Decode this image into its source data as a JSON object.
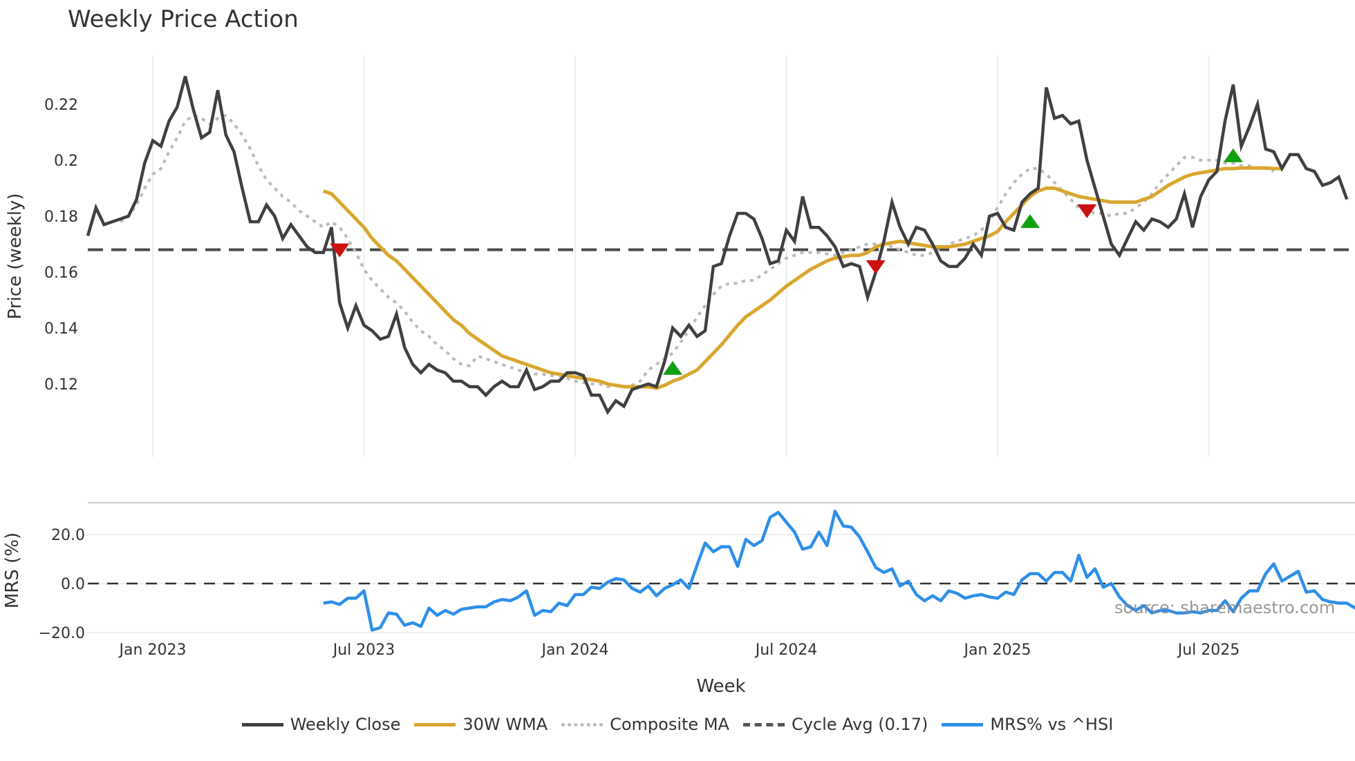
{
  "header": {
    "title": "Weekly Price Action"
  },
  "watermark": "source: sharemaestro.com",
  "legend": [
    {
      "label": "Weekly Close",
      "color": "#404040",
      "style": "solid"
    },
    {
      "label": "30W WMA",
      "color": "#D9A62E",
      "style": "solid"
    },
    {
      "label": "Composite MA",
      "color": "#BBBBBB",
      "style": "dotted"
    },
    {
      "label": "Cycle Avg (0.17)",
      "color": "#555555",
      "style": "dashed"
    },
    {
      "label": "MRS% vs ^HSI",
      "color": "#2E8FE8",
      "style": "solid"
    }
  ],
  "chart_data": [
    {
      "type": "line",
      "title": "Weekly Price Action",
      "xlabel": "Week",
      "ylabel": "Price (weekly)",
      "x_ticks": [
        "Jan 2023",
        "Jul 2023",
        "Jan 2024",
        "Jul 2024",
        "Jan 2025",
        "Jul 2025"
      ],
      "x_tick_week_index": [
        8,
        34,
        60,
        86,
        112,
        138
      ],
      "y_ticks": [
        0.12,
        0.14,
        0.16,
        0.18,
        0.2,
        0.22
      ],
      "y_tick_labels": [
        "0.12",
        "0.14",
        "0.16",
        "0.18",
        "0.2",
        "0.22"
      ],
      "ylim": [
        0.103,
        0.2325
      ],
      "grid": "vertical",
      "cycle_avg": 0.168,
      "series": [
        {
          "name": "Weekly Close",
          "start_index": 0,
          "values": [
            0.173,
            0.183,
            0.177,
            0.178,
            0.179,
            0.18,
            0.186,
            0.199,
            0.207,
            0.205,
            0.214,
            0.219,
            0.23,
            0.218,
            0.208,
            0.21,
            0.225,
            0.209,
            0.203,
            0.19,
            0.178,
            0.178,
            0.184,
            0.18,
            0.172,
            0.177,
            0.173,
            0.169,
            0.167,
            0.167,
            0.176,
            0.149,
            0.14,
            0.148,
            0.141,
            0.139,
            0.136,
            0.137,
            0.145,
            0.133,
            0.127,
            0.124,
            0.127,
            0.125,
            0.124,
            0.121,
            0.121,
            0.119,
            0.119,
            0.116,
            0.119,
            0.121,
            0.119,
            0.119,
            0.125,
            0.118,
            0.119,
            0.121,
            0.121,
            0.124,
            0.124,
            0.123,
            0.116,
            0.116,
            0.11,
            0.114,
            0.112,
            0.118,
            0.119,
            0.12,
            0.119,
            0.128,
            0.14,
            0.137,
            0.141,
            0.137,
            0.139,
            0.162,
            0.163,
            0.173,
            0.181,
            0.181,
            0.179,
            0.172,
            0.163,
            0.164,
            0.175,
            0.171,
            0.187,
            0.176,
            0.176,
            0.173,
            0.169,
            0.162,
            0.163,
            0.162,
            0.151,
            0.16,
            0.171,
            0.185,
            0.176,
            0.17,
            0.176,
            0.175,
            0.17,
            0.164,
            0.162,
            0.162,
            0.165,
            0.17,
            0.166,
            0.18,
            0.181,
            0.176,
            0.175,
            0.185,
            0.188,
            0.19,
            0.226,
            0.215,
            0.216,
            0.213,
            0.214,
            0.2,
            0.19,
            0.18,
            0.17,
            0.166,
            0.172,
            0.178,
            0.175,
            0.179,
            0.178,
            0.176,
            0.179,
            0.188,
            0.176,
            0.187,
            0.193,
            0.196,
            0.214,
            0.227,
            0.205,
            0.212,
            0.22,
            0.204,
            0.203,
            0.197,
            0.202,
            0.202,
            0.197,
            0.196,
            0.191,
            0.192,
            0.194,
            0.186
          ]
        },
        {
          "name": "30W WMA",
          "start_index": 29,
          "values": [
            0.189,
            0.188,
            0.185,
            0.182,
            0.179,
            0.176,
            0.172,
            0.169,
            0.166,
            0.164,
            0.161,
            0.158,
            0.155,
            0.152,
            0.149,
            0.146,
            0.143,
            0.141,
            0.138,
            0.136,
            0.134,
            0.132,
            0.13,
            0.129,
            0.128,
            0.127,
            0.126,
            0.125,
            0.124,
            0.1235,
            0.123,
            0.1225,
            0.122,
            0.1215,
            0.121,
            0.12,
            0.1195,
            0.119,
            0.119,
            0.119,
            0.119,
            0.1185,
            0.1195,
            0.121,
            0.122,
            0.1235,
            0.125,
            0.128,
            0.131,
            0.134,
            0.1375,
            0.141,
            0.144,
            0.146,
            0.148,
            0.15,
            0.1525,
            0.155,
            0.157,
            0.159,
            0.161,
            0.1625,
            0.164,
            0.165,
            0.1655,
            0.166,
            0.166,
            0.167,
            0.169,
            0.17,
            0.1705,
            0.171,
            0.1705,
            0.17,
            0.1695,
            0.169,
            0.169,
            0.169,
            0.1695,
            0.17,
            0.171,
            0.172,
            0.173,
            0.1745,
            0.178,
            0.181,
            0.184,
            0.187,
            0.189,
            0.19,
            0.19,
            0.189,
            0.188,
            0.187,
            0.1865,
            0.186,
            0.1855,
            0.185,
            0.185,
            0.185,
            0.185,
            0.186,
            0.187,
            0.189,
            0.191,
            0.1925,
            0.194,
            0.195,
            0.1955,
            0.196,
            0.1965,
            0.197,
            0.197,
            0.1972,
            0.1972,
            0.1972,
            0.1972,
            0.197,
            0.197
          ]
        },
        {
          "name": "Composite MA",
          "start_index": 4,
          "values": [
            0.178,
            0.18,
            0.184,
            0.19,
            0.195,
            0.197,
            0.203,
            0.208,
            0.214,
            0.216,
            0.215,
            0.213,
            0.215,
            0.216,
            0.213,
            0.209,
            0.204,
            0.198,
            0.193,
            0.19,
            0.187,
            0.185,
            0.182,
            0.18,
            0.178,
            0.176,
            0.178,
            0.176,
            0.172,
            0.167,
            0.161,
            0.157,
            0.154,
            0.151,
            0.149,
            0.146,
            0.142,
            0.139,
            0.137,
            0.134,
            0.132,
            0.129,
            0.127,
            0.1265,
            0.13,
            0.129,
            0.128,
            0.127,
            0.126,
            0.125,
            0.124,
            0.1235,
            0.1235,
            0.123,
            0.123,
            0.122,
            0.121,
            0.1205,
            0.12,
            0.12,
            0.119,
            0.1195,
            0.119,
            0.1195,
            0.121,
            0.125,
            0.127,
            0.129,
            0.131,
            0.135,
            0.139,
            0.144,
            0.148,
            0.152,
            0.155,
            0.156,
            0.156,
            0.157,
            0.157,
            0.159,
            0.161,
            0.163,
            0.165,
            0.166,
            0.167,
            0.167,
            0.167,
            0.1665,
            0.166,
            0.167,
            0.168,
            0.169,
            0.17,
            0.17,
            0.17,
            0.169,
            0.168,
            0.167,
            0.166,
            0.166,
            0.167,
            0.168,
            0.17,
            0.171,
            0.172,
            0.173,
            0.175,
            0.178,
            0.183,
            0.188,
            0.192,
            0.195,
            0.197,
            0.197,
            0.195,
            0.192,
            0.189,
            0.186,
            0.183,
            0.182,
            0.181,
            0.181,
            0.18,
            0.181,
            0.181,
            0.183,
            0.185,
            0.188,
            0.192,
            0.195,
            0.198,
            0.201,
            0.201,
            0.2,
            0.2,
            0.2,
            0.199,
            0.199,
            0.198,
            0.198,
            0.197,
            0.197,
            0.196
          ]
        }
      ],
      "signals": [
        {
          "type": "sell",
          "index": 31,
          "value": 0.168,
          "color": "#CC1111"
        },
        {
          "type": "buy",
          "index": 72,
          "value": 0.1255,
          "color": "#11A011"
        },
        {
          "type": "sell",
          "index": 97,
          "value": 0.162,
          "color": "#CC1111"
        },
        {
          "type": "buy",
          "index": 116,
          "value": 0.178,
          "color": "#11A011"
        },
        {
          "type": "sell",
          "index": 123,
          "value": 0.182,
          "color": "#CC1111"
        },
        {
          "type": "buy",
          "index": 141,
          "value": 0.2015,
          "color": "#11A011"
        }
      ]
    },
    {
      "type": "line",
      "ylabel": "MRS (%)",
      "y_ticks": [
        -20,
        0,
        20
      ],
      "y_tick_labels": [
        "−20.0",
        "0.0",
        "20.0"
      ],
      "ylim": [
        -21,
        32
      ],
      "zero_line": 0,
      "series": [
        {
          "name": "MRS% vs ^HSI",
          "start_index": 29,
          "values": [
            -8,
            -7.5,
            -8.5,
            -6,
            -6,
            -3,
            -19,
            -18,
            -12,
            -12.5,
            -17,
            -16,
            -17.5,
            -10,
            -13,
            -11,
            -12.5,
            -10.5,
            -10,
            -9.5,
            -9.5,
            -7.5,
            -6.5,
            -7,
            -5.5,
            -3,
            -13,
            -11,
            -11.5,
            -8,
            -9,
            -4.5,
            -4.5,
            -1.5,
            -2,
            0.5,
            2,
            1.5,
            -2,
            -3.5,
            -1,
            -5,
            -2,
            -0.5,
            1.5,
            -2,
            7.5,
            16.5,
            13,
            15,
            15,
            7,
            18,
            15.5,
            17.5,
            27,
            29,
            25,
            21,
            14,
            15,
            21,
            15.5,
            29.5,
            23.5,
            23,
            19,
            13,
            6.5,
            4.5,
            6,
            -1,
            1,
            -4.5,
            -7,
            -5,
            -7,
            -3,
            -4,
            -6,
            -5,
            -4.5,
            -5.5,
            -6,
            -3.5,
            -4.5,
            1.5,
            4,
            4,
            1,
            4.5,
            4.5,
            1,
            11.5,
            2.5,
            6,
            -1.5,
            0,
            -5.5,
            -9,
            -11,
            -9,
            -12,
            -11,
            -11,
            -12,
            -12,
            -11.5,
            -12,
            -11,
            -11,
            -7,
            -11.5,
            -6,
            -3,
            -3,
            4,
            8,
            1,
            3,
            5,
            -3.5,
            -3,
            -6.5,
            -7.5,
            -8,
            -8,
            -10,
            -7,
            -6,
            -8,
            -8,
            -10
          ]
        }
      ]
    }
  ]
}
